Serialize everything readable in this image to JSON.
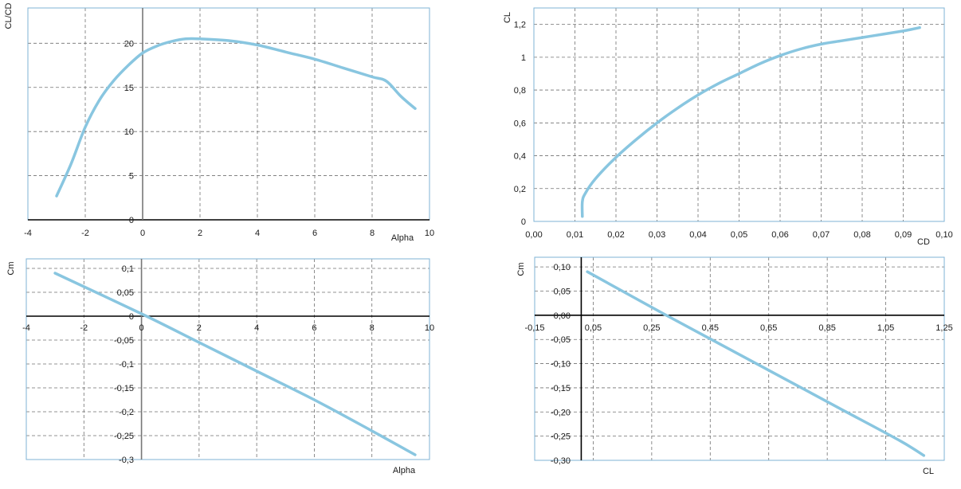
{
  "colors": {
    "series": "#89c6e0",
    "frame": "#7fb3d5",
    "grid": "#707070"
  },
  "chart_data": [
    {
      "type": "line",
      "xlabel": "Alpha",
      "ylabel": "CL/CD",
      "xlim": [
        -4,
        10
      ],
      "ylim": [
        0,
        24
      ],
      "x_ticks": [
        "-4",
        "-2",
        "0",
        "2",
        "4",
        "6",
        "8",
        "10"
      ],
      "y_ticks": [
        "0",
        "5",
        "10",
        "15",
        "20"
      ],
      "grid": true,
      "series": [
        {
          "x": [
            -3,
            -2.5,
            -2,
            -1.5,
            -1,
            -0.5,
            0,
            0.5,
            1,
            1.5,
            2,
            3,
            4,
            5,
            6,
            7,
            8,
            8.5,
            9,
            9.5
          ],
          "y": [
            2.7,
            6.3,
            10.5,
            13.6,
            15.8,
            17.5,
            18.9,
            19.7,
            20.2,
            20.5,
            20.5,
            20.3,
            19.8,
            19.0,
            18.2,
            17.2,
            16.2,
            15.7,
            14.0,
            12.6
          ]
        }
      ]
    },
    {
      "type": "line",
      "xlabel": "CD",
      "ylabel": "CL",
      "xlim": [
        0,
        0.1
      ],
      "ylim": [
        0,
        1.3
      ],
      "x_ticks": [
        "0,00",
        "0,01",
        "0,02",
        "0,03",
        "0,04",
        "0,05",
        "0,06",
        "0,07",
        "0,08",
        "0,09",
        "0,10"
      ],
      "y_ticks": [
        "0",
        "0,2",
        "0,4",
        "0,6",
        "0,8",
        "1",
        "1,2"
      ],
      "grid": true,
      "series": [
        {
          "x": [
            0.0118,
            0.0118,
            0.0125,
            0.015,
            0.02,
            0.025,
            0.03,
            0.035,
            0.04,
            0.045,
            0.05,
            0.055,
            0.06,
            0.065,
            0.07,
            0.075,
            0.08,
            0.085,
            0.09,
            0.094
          ],
          "y": [
            0.03,
            0.12,
            0.17,
            0.26,
            0.39,
            0.5,
            0.6,
            0.69,
            0.77,
            0.84,
            0.9,
            0.96,
            1.01,
            1.05,
            1.08,
            1.1,
            1.12,
            1.14,
            1.16,
            1.18
          ]
        }
      ]
    },
    {
      "type": "line",
      "xlabel": "Alpha",
      "ylabel": "Cm",
      "xlim": [
        -4,
        10
      ],
      "ylim": [
        -0.3,
        0.12
      ],
      "x_ticks": [
        "-4",
        "-2",
        "0",
        "2",
        "4",
        "6",
        "8",
        "10"
      ],
      "y_ticks": [
        "0,1",
        "0,05",
        "0",
        "-0,05",
        "-0,1",
        "-0,15",
        "-0,2",
        "-0,25",
        "-0,3"
      ],
      "grid": true,
      "series": [
        {
          "x": [
            -3,
            0,
            2,
            4,
            6,
            8,
            9.5
          ],
          "y": [
            0.09,
            0.005,
            -0.055,
            -0.115,
            -0.175,
            -0.24,
            -0.29
          ]
        }
      ]
    },
    {
      "type": "line",
      "xlabel": "CL",
      "ylabel": "Cm",
      "xlim": [
        -0.15,
        1.25
      ],
      "ylim": [
        -0.3,
        0.12
      ],
      "x_ticks": [
        "-0,15",
        "0,05",
        "0,25",
        "0,45",
        "0,65",
        "0,85",
        "1,05",
        "1,25"
      ],
      "y_ticks": [
        "0,10",
        "0,05",
        "0,00",
        "-0,05",
        "-0,10",
        "-0,15",
        "-0,20",
        "-0,25",
        "-0,30"
      ],
      "grid": true,
      "series": [
        {
          "x": [
            0.03,
            0.3,
            0.5,
            0.7,
            0.9,
            1.1,
            1.18
          ],
          "y": [
            0.09,
            0.0,
            -0.065,
            -0.13,
            -0.195,
            -0.26,
            -0.29
          ]
        }
      ]
    }
  ]
}
